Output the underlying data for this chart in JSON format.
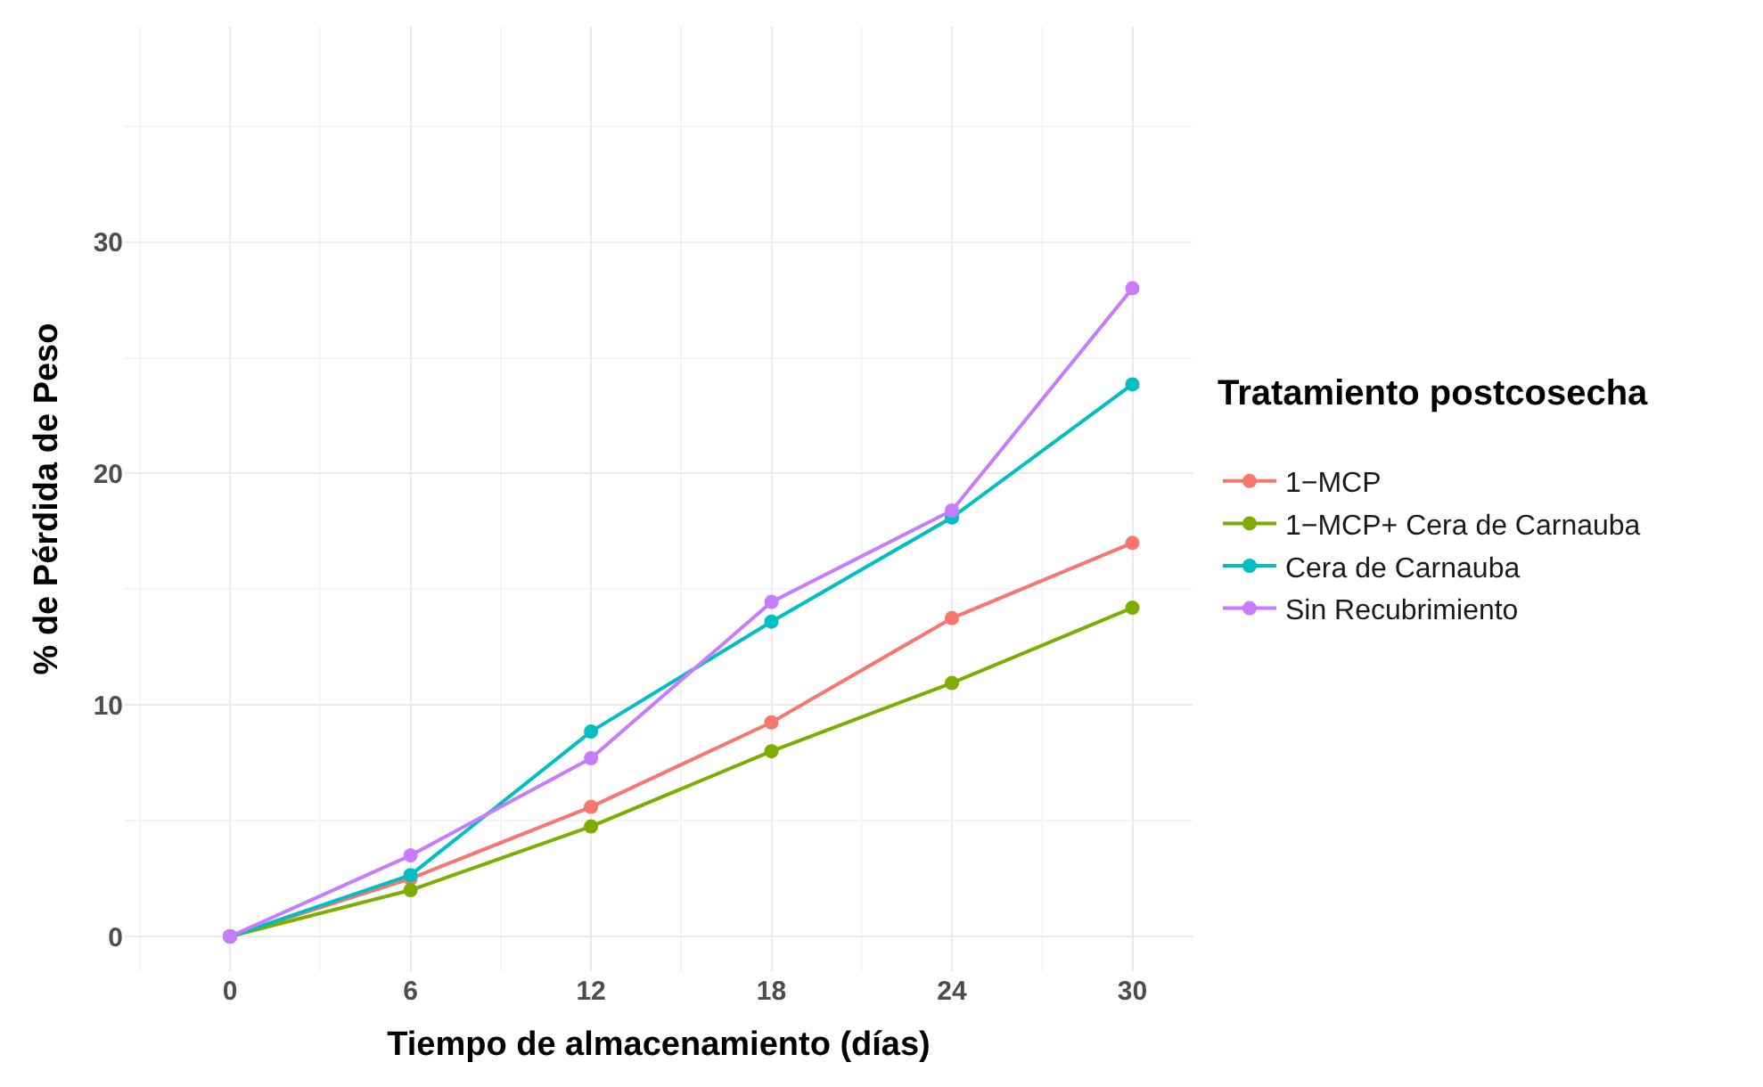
{
  "chart_data": {
    "type": "line",
    "xlabel": "Tiempo de almacenamiento (días)",
    "ylabel": "% de Pérdida de Peso",
    "legend_title": "Tratamiento postcosecha",
    "x": [
      0,
      6,
      12,
      18,
      24,
      30
    ],
    "series": [
      {
        "name": "1−MCP",
        "color": "#f8766d",
        "values": [
          0,
          2.5,
          5.6,
          9.25,
          13.75,
          17.0
        ]
      },
      {
        "name": "1−MCP+ Cera de Carnauba",
        "color": "#7cae00",
        "values": [
          0,
          2.0,
          4.75,
          8.0,
          10.95,
          14.2
        ]
      },
      {
        "name": "Cera de Carnauba",
        "color": "#00bfc4",
        "values": [
          0,
          2.65,
          8.85,
          13.6,
          18.1,
          23.85
        ]
      },
      {
        "name": "Sin Recubrimiento",
        "color": "#c77cff",
        "values": [
          0,
          3.5,
          7.7,
          14.45,
          18.4,
          28.0
        ]
      }
    ],
    "xlim": [
      -3.5,
      32
    ],
    "xticks": [
      0,
      6,
      12,
      18,
      24,
      30
    ],
    "ylim": [
      -1.5,
      39.3
    ],
    "yticks": [
      0,
      10,
      20,
      30
    ],
    "grid": true,
    "legend": "right",
    "marker": "circle",
    "line_style": "solid"
  }
}
